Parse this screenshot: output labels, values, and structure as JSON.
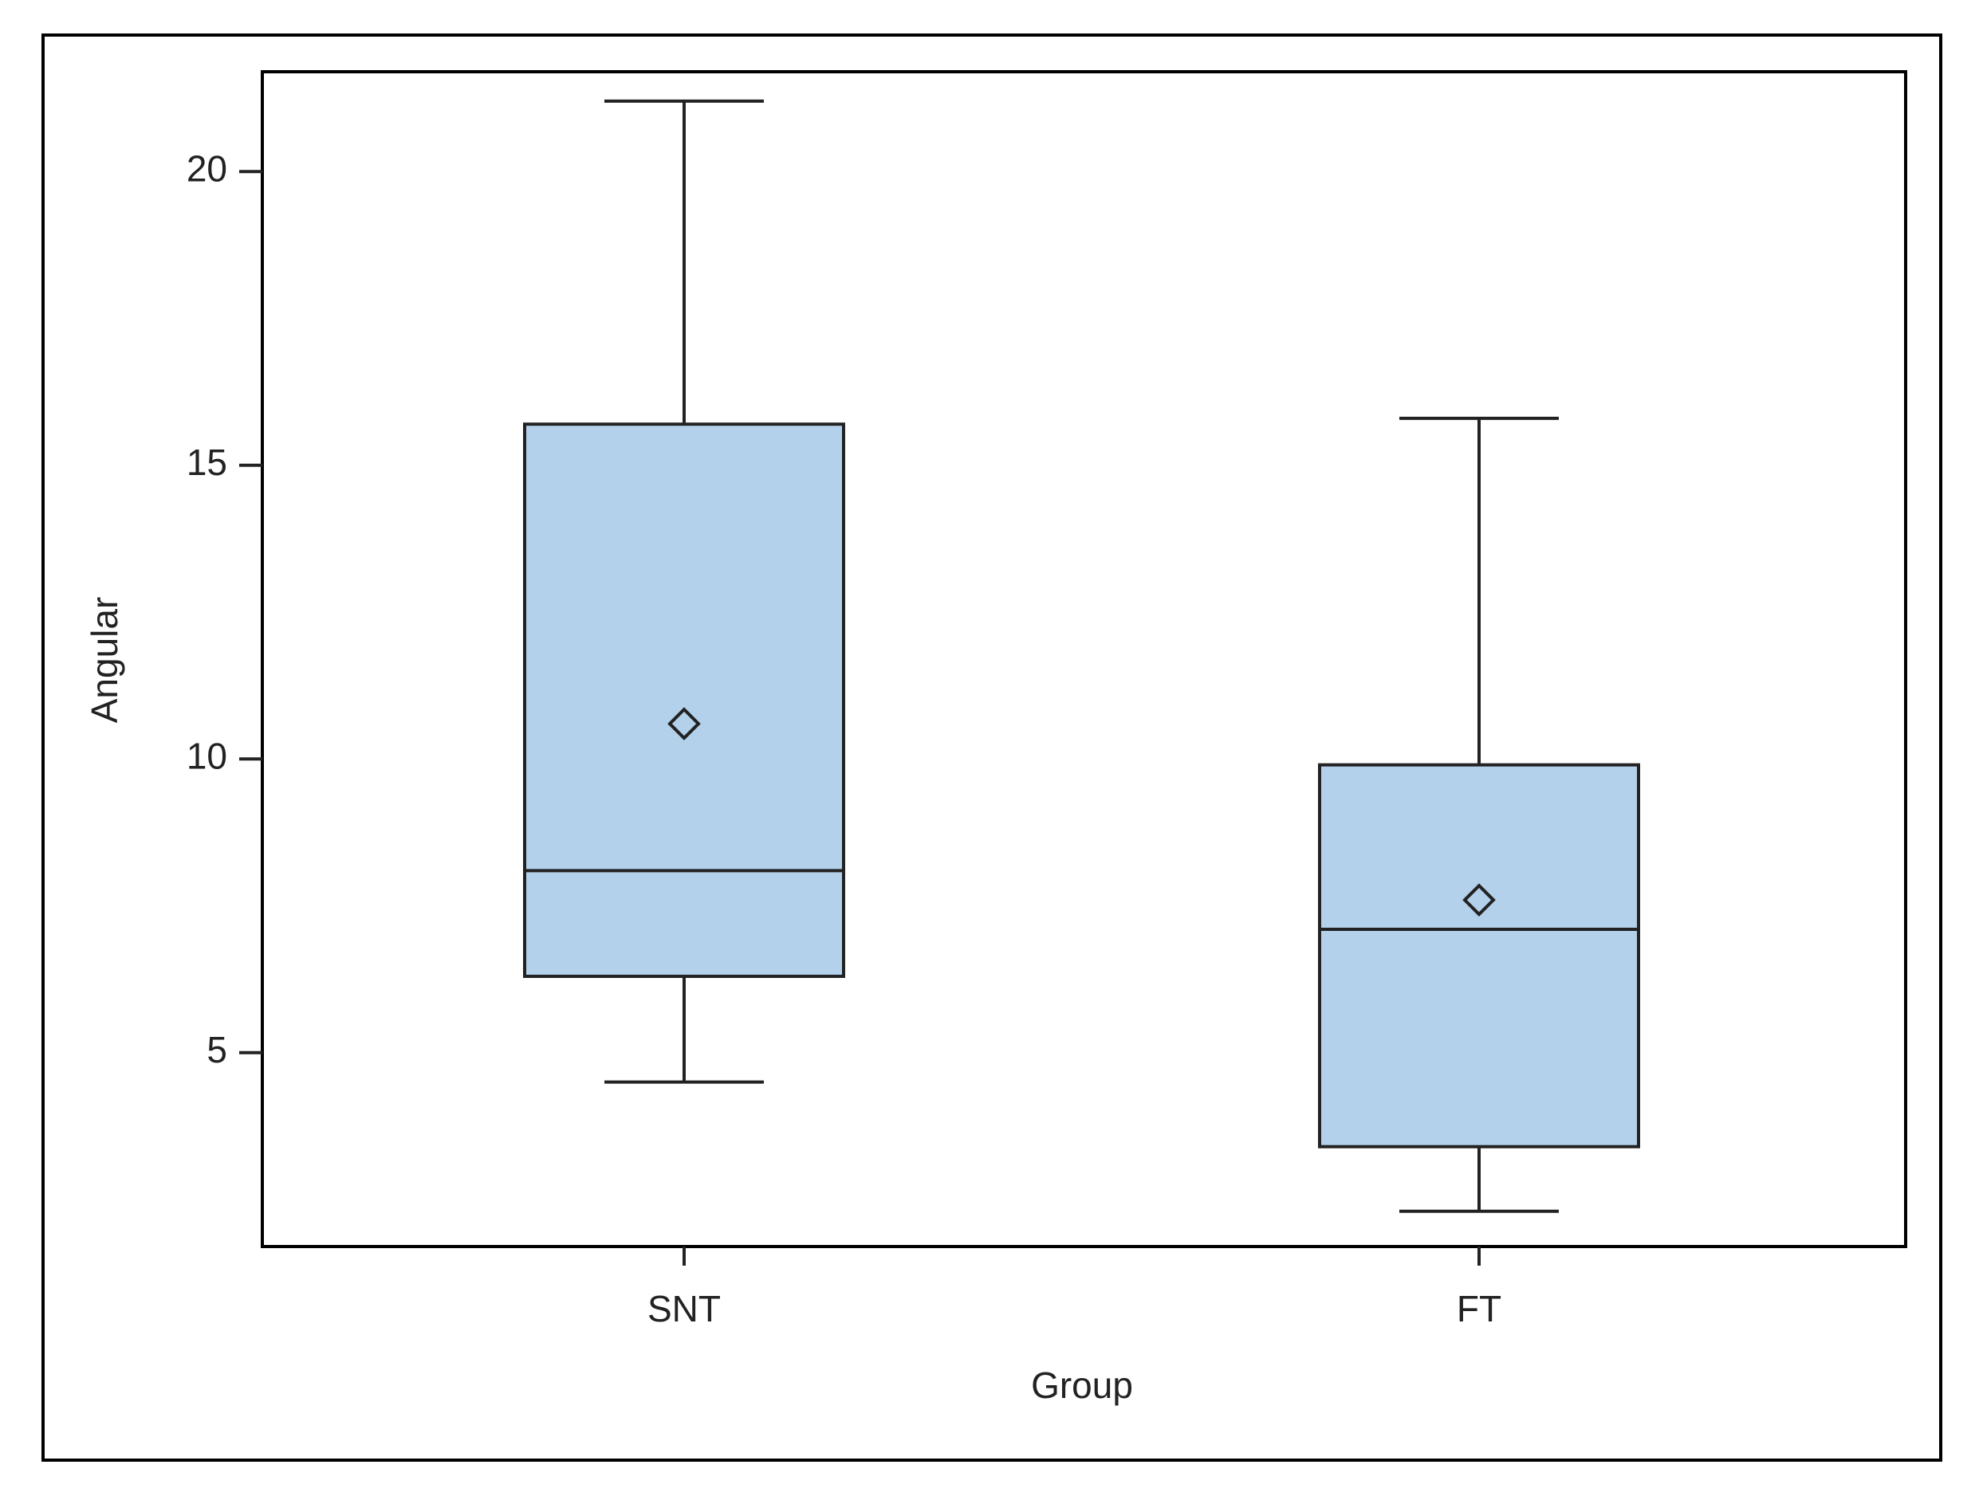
{
  "chart_data": {
    "type": "box",
    "xlabel": "Group",
    "ylabel": "Angular",
    "categories": [
      "SNT",
      "FT"
    ],
    "whisker_low": [
      4.5,
      2.3
    ],
    "q1": [
      6.3,
      3.4
    ],
    "median": [
      8.1,
      7.1
    ],
    "q3": [
      15.7,
      9.9
    ],
    "whisker_high": [
      21.2,
      15.8
    ],
    "mean": [
      10.6,
      7.6
    ],
    "color": "#b3d1ea",
    "ylim": [
      1.7,
      21.7
    ],
    "yticks": [
      5,
      10,
      15,
      20
    ],
    "grid": false
  }
}
